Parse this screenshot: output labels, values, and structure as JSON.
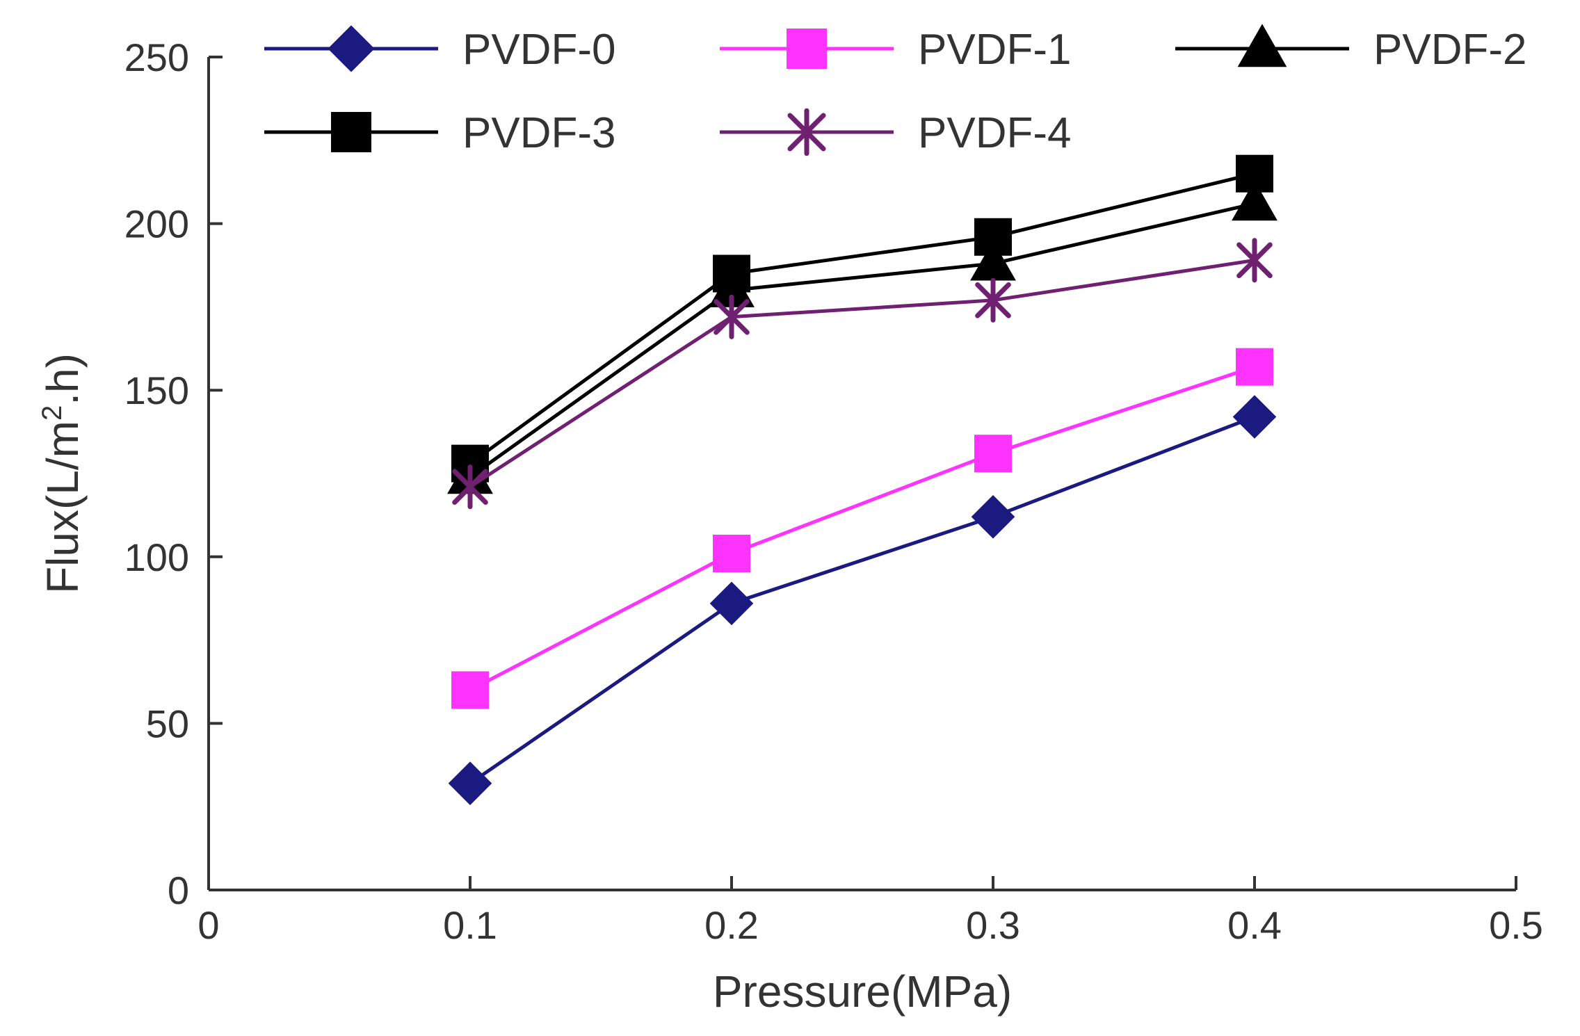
{
  "chart_data": {
    "type": "line",
    "title": "",
    "xlabel": "Pressure(MPa)",
    "ylabel": {
      "prefix": "Flux(L/m",
      "sup": "2",
      "suffix": ".h)"
    },
    "xlim": [
      0,
      0.5
    ],
    "ylim": [
      0,
      250
    ],
    "xticks": [
      0,
      0.1,
      0.2,
      0.3,
      0.4,
      0.5
    ],
    "xtick_labels": [
      "0",
      "0.1",
      "0.2",
      "0.3",
      "0.4",
      "0.5"
    ],
    "yticks": [
      0,
      50,
      100,
      150,
      200,
      250
    ],
    "ytick_labels": [
      "0",
      "50",
      "100",
      "150",
      "200",
      "250"
    ],
    "grid": false,
    "legend_position": "top",
    "x": [
      0.1,
      0.2,
      0.3,
      0.4
    ],
    "series": [
      {
        "name": "PVDF-0",
        "values": [
          32,
          86,
          112,
          142
        ],
        "color": "#1a1a80",
        "marker": "diamond"
      },
      {
        "name": "PVDF-1",
        "values": [
          60,
          101,
          131,
          157
        ],
        "color": "#ff33ff",
        "marker": "square"
      },
      {
        "name": "PVDF-2",
        "values": [
          124,
          180,
          188,
          206
        ],
        "color": "#000000",
        "marker": "triangle"
      },
      {
        "name": "PVDF-3",
        "values": [
          128,
          185,
          196,
          215
        ],
        "color": "#000000",
        "marker": "square"
      },
      {
        "name": "PVDF-4",
        "values": [
          121,
          172,
          177,
          189
        ],
        "color": "#702070",
        "marker": "asterisk"
      }
    ]
  }
}
